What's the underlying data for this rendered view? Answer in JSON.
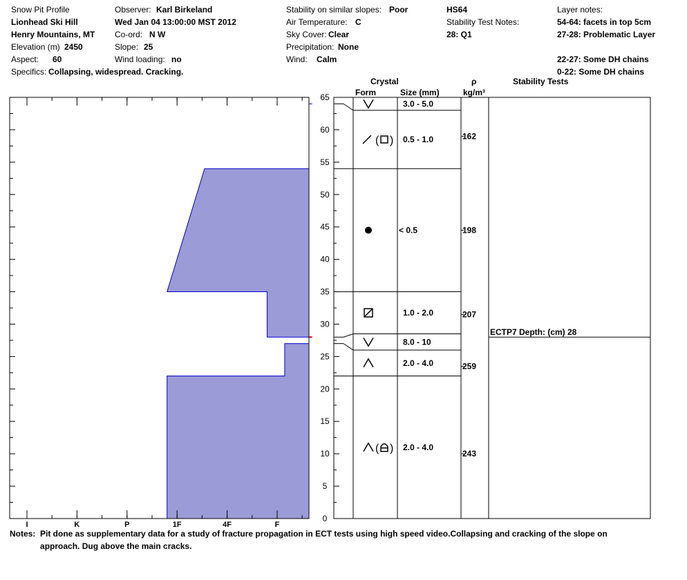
{
  "header": {
    "col1": {
      "title": "Snow Pit Profile",
      "location": "Lionhead Ski Hill",
      "region": "Henry Mountains, MT",
      "elevation_label": "Elevation (m)",
      "elevation_value": "2450",
      "aspect_label": "Aspect:",
      "aspect_value": "60",
      "specifics_label": "Specifics:",
      "specifics_value": "Collapsing, widespread. Cracking."
    },
    "col2": {
      "observer_label": "Observer:",
      "observer_value": "Karl Birkeland",
      "datetime": "Wed Jan 04 13:00:00 MST 2012",
      "coord_label": "Co-ord:",
      "coord_value": "N  W",
      "slope_label": "Slope:",
      "slope_value": "25",
      "wind_loading_label": "Wind loading:",
      "wind_loading_value": "no"
    },
    "col3": {
      "stability_label": "Stability on similar slopes:",
      "stability_value": "Poor",
      "air_temp_label": "Air Temperature:",
      "air_temp_value": "C",
      "sky_label": "Sky Cover:",
      "sky_value": "Clear",
      "precip_label": "Precipitation:",
      "precip_value": "None",
      "wind_label": "Wind:",
      "wind_value": "Calm"
    },
    "col4": {
      "hs": "HS64",
      "stability_notes_label": "Stability Test Notes:",
      "stability_notes_value": "28: Q1"
    },
    "col5": {
      "layer_notes_label": "Layer notes:",
      "notes": [
        "54-64: facets in top 5cm",
        "27-28: Problematic Layer",
        "22-27: Some DH chains",
        "0-22: Some DH chains"
      ]
    }
  },
  "table_headers": {
    "crystal": "Crystal",
    "form": "Form",
    "size": "Size (mm)",
    "rho": "ρ",
    "rho_unit": "kg/m³",
    "stability_tests": "Stability Tests"
  },
  "colors": {
    "hardness_fill": "#9b9bd7",
    "hardness_stroke": "#0000cc",
    "test_line": "#ff0000"
  },
  "chart_data": {
    "type": "area",
    "xlabel": "",
    "ylabel": "",
    "ylim": [
      0,
      65
    ],
    "y_ticks": [
      0,
      5,
      10,
      15,
      20,
      25,
      30,
      35,
      40,
      45,
      50,
      55,
      60,
      65
    ],
    "hardness_scale": [
      "I",
      "K",
      "P",
      "1F",
      "4F",
      "F"
    ],
    "hardness_scale_values": [
      1,
      2,
      3,
      4,
      5,
      6
    ],
    "hardness_profile": [
      {
        "y": 65,
        "h": 6.7
      },
      {
        "y": 54,
        "h": 6.7
      },
      {
        "y": 54,
        "h": 4.55
      },
      {
        "y": 35,
        "h": 3.8
      },
      {
        "y": 35,
        "h": 5.8
      },
      {
        "y": 28,
        "h": 5.8
      },
      {
        "y": 28,
        "h": 6.7
      },
      {
        "y": 27,
        "h": 6.7
      },
      {
        "y": 27,
        "h": 6.15
      },
      {
        "y": 22,
        "h": 6.15
      },
      {
        "y": 22,
        "h": 3.8
      },
      {
        "y": 0,
        "h": 3.8
      }
    ],
    "inner_boundary_line": 64,
    "test_layer_depth": 28,
    "layers": [
      {
        "top": 65,
        "bottom": 63,
        "form": "v",
        "size": "3.0 - 5.0",
        "density": ""
      },
      {
        "top": 63,
        "bottom": 54,
        "form": "slash-square",
        "size": "0.5 - 1.0",
        "density": "162",
        "density_at": 59
      },
      {
        "top": 54,
        "bottom": 35,
        "form": "dot",
        "size": "< 0.5",
        "density": "198",
        "density_at": 44.5
      },
      {
        "top": 35,
        "bottom": 28.5,
        "form": "square-x",
        "size": "1.0 - 2.0",
        "density": "207",
        "density_at": 31.5
      },
      {
        "top": 28.5,
        "bottom": 26,
        "form": "v",
        "size": "8.0 - 10",
        "density": ""
      },
      {
        "top": 26,
        "bottom": 22,
        "form": "caret",
        "size": "2.0 - 4.0",
        "density": "259",
        "density_at": 23.5
      },
      {
        "top": 22,
        "bottom": 0,
        "form": "caret-lock",
        "size": "2.0 - 4.0",
        "density": "243",
        "density_at": 10
      }
    ],
    "stability_tests": [
      {
        "depth": 28,
        "label": "ECTP7   Depth: (cm) 28"
      }
    ]
  },
  "notes": {
    "label": "Notes:",
    "text": "Pit done as supplementary data for a study of fracture propagation in ECT tests using high speed video.Collapsing and cracking of the slope on approach. Dug above the main cracks."
  }
}
